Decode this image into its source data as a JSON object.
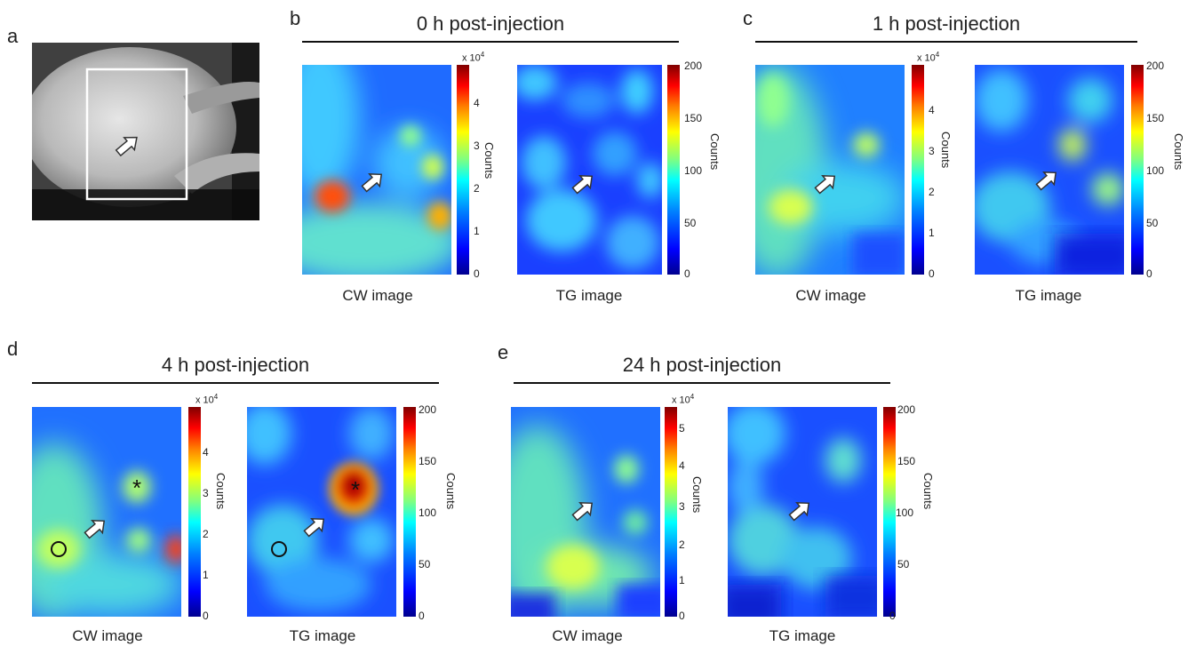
{
  "panels": {
    "a": {
      "letter": "a"
    },
    "b": {
      "letter": "b",
      "title": "0 h post-injection"
    },
    "c": {
      "letter": "c",
      "title": "1 h post-injection"
    },
    "d": {
      "letter": "d",
      "title": "4 h post-injection"
    },
    "e": {
      "letter": "e",
      "title": "24 h post-injection"
    }
  },
  "captions": {
    "cw": "CW image",
    "tg": "TG image"
  },
  "colorbar": {
    "label": "Counts",
    "scale_base": "x 10",
    "scale_exp": "4",
    "cw_ticks": [
      "0",
      "1",
      "2",
      "3",
      "4"
    ],
    "cw_ticks_e": [
      "0",
      "1",
      "2",
      "3",
      "4",
      "5"
    ],
    "tg_ticks": [
      "0",
      "50",
      "100",
      "150",
      "200"
    ]
  },
  "markers": {
    "star": "*"
  },
  "colors": {
    "jet_low": "#00008f",
    "jet_high": "#800000"
  }
}
